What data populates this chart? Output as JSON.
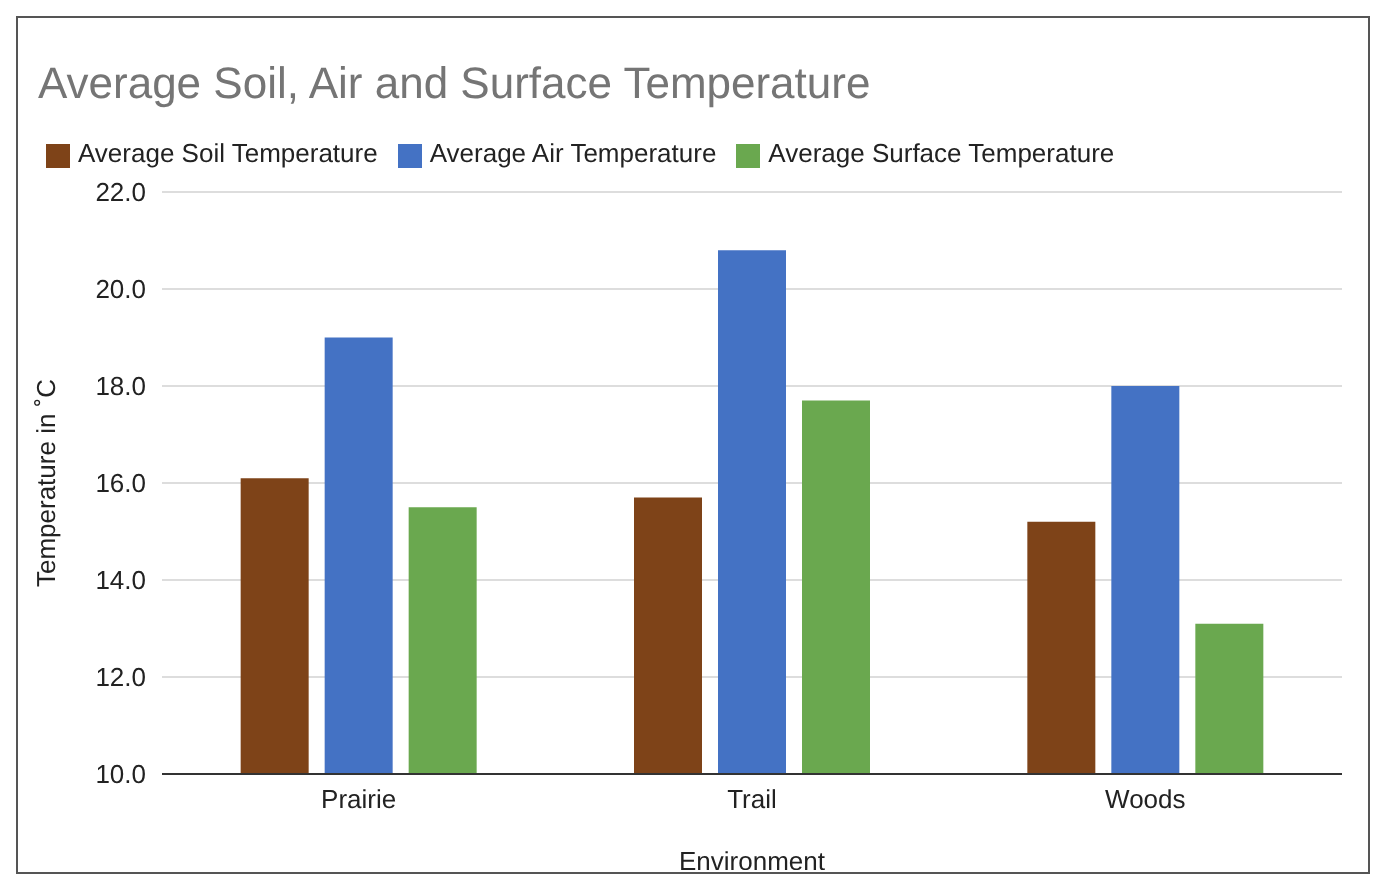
{
  "chart_data": {
    "type": "bar",
    "title": "Average Soil, Air and Surface Temperature",
    "xlabel": "Environment",
    "ylabel": "Temperature in ˚C",
    "categories": [
      "Prairie",
      "Trail",
      "Woods"
    ],
    "series": [
      {
        "name": "Average Soil Temperature",
        "color": "#7e4318",
        "values": [
          16.1,
          15.7,
          15.2
        ]
      },
      {
        "name": "Average Air Temperature",
        "color": "#4472c4",
        "values": [
          19.0,
          20.8,
          18.0
        ]
      },
      {
        "name": "Average Surface Temperature",
        "color": "#6aa84f",
        "values": [
          15.5,
          17.7,
          13.1
        ]
      }
    ],
    "ylim": [
      10,
      22
    ],
    "yticks": [
      {
        "value": 10,
        "label": "10.0"
      },
      {
        "value": 12,
        "label": "12.0"
      },
      {
        "value": 14,
        "label": "14.0"
      },
      {
        "value": 16,
        "label": "16.0"
      },
      {
        "value": 18,
        "label": "18.0"
      },
      {
        "value": 20,
        "label": "20.0"
      },
      {
        "value": 22,
        "label": "22.0"
      }
    ],
    "grid": "y",
    "legend": "top left"
  }
}
